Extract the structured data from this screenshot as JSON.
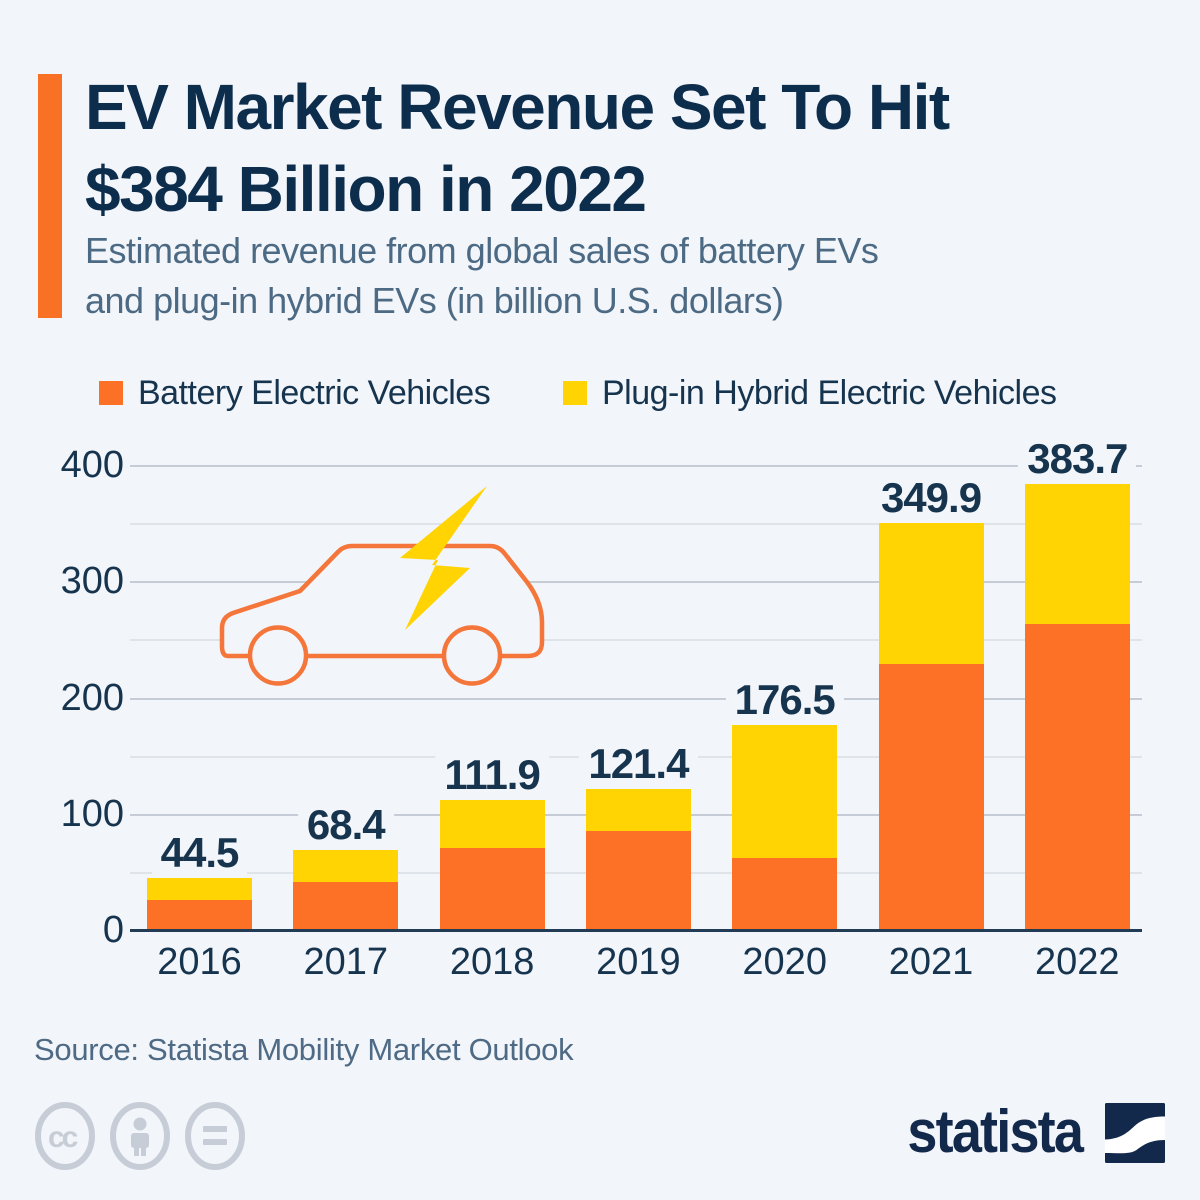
{
  "colors": {
    "bg": "#F2F5F9",
    "accent": "#F97124",
    "orange": "#FC7126",
    "yellow": "#FFD402",
    "navyTitle": "#0D2D4D",
    "navyText": "#17344F",
    "slate": "#4C6A84",
    "source": "#4E6A85",
    "gridMinor": "#DFE3EA",
    "gridMajor": "#C5CCD6",
    "axis": "#233C55",
    "iconGray": "#C6CDD7",
    "brand": "#13294B",
    "carStroke": "#F5763A"
  },
  "header": {
    "title_line1": "EV Market Revenue Set To Hit",
    "title_line2": "$384 Billion in 2022",
    "subtitle_line1": "Estimated revenue from global sales of battery EVs",
    "subtitle_line2": "and plug-in hybrid EVs (in billion U.S. dollars)"
  },
  "legend": [
    {
      "label": "Battery Electric Vehicles",
      "color": "#FC7126"
    },
    {
      "label": "Plug-in Hybrid Electric Vehicles",
      "color": "#FFD402"
    }
  ],
  "chart_data": {
    "type": "bar",
    "stacked": true,
    "categories": [
      "2016",
      "2017",
      "2018",
      "2019",
      "2020",
      "2021",
      "2022"
    ],
    "series": [
      {
        "name": "Battery Electric Vehicles",
        "color": "#FC7126",
        "values": [
          26.0,
          41.1,
          70.4,
          84.9,
          61.8,
          228.9,
          263.1
        ]
      },
      {
        "name": "Plug-in Hybrid Electric Vehicles",
        "color": "#FFD402",
        "values": [
          18.5,
          27.3,
          41.5,
          36.5,
          114.7,
          121.0,
          120.6
        ]
      }
    ],
    "totals": [
      44.5,
      68.4,
      111.9,
      121.4,
      176.5,
      349.9,
      383.7
    ],
    "total_labels": [
      "44.5",
      "68.4",
      "111.9",
      "121.4",
      "176.5",
      "349.9",
      "383.7"
    ],
    "yticks": [
      0,
      100,
      200,
      300,
      400
    ],
    "ylim": [
      0,
      400
    ],
    "grid_step": 50,
    "grid": true,
    "legend_position": "top",
    "icons": [
      "ev-car-icon",
      "lightning-bolt-icon"
    ]
  },
  "footer": {
    "source": "Source: Statista Mobility Market Outlook",
    "cc_text": "cc",
    "license_icons": [
      "cc-icon",
      "attribution-person-icon",
      "equals-icon"
    ],
    "brand": "statista"
  }
}
